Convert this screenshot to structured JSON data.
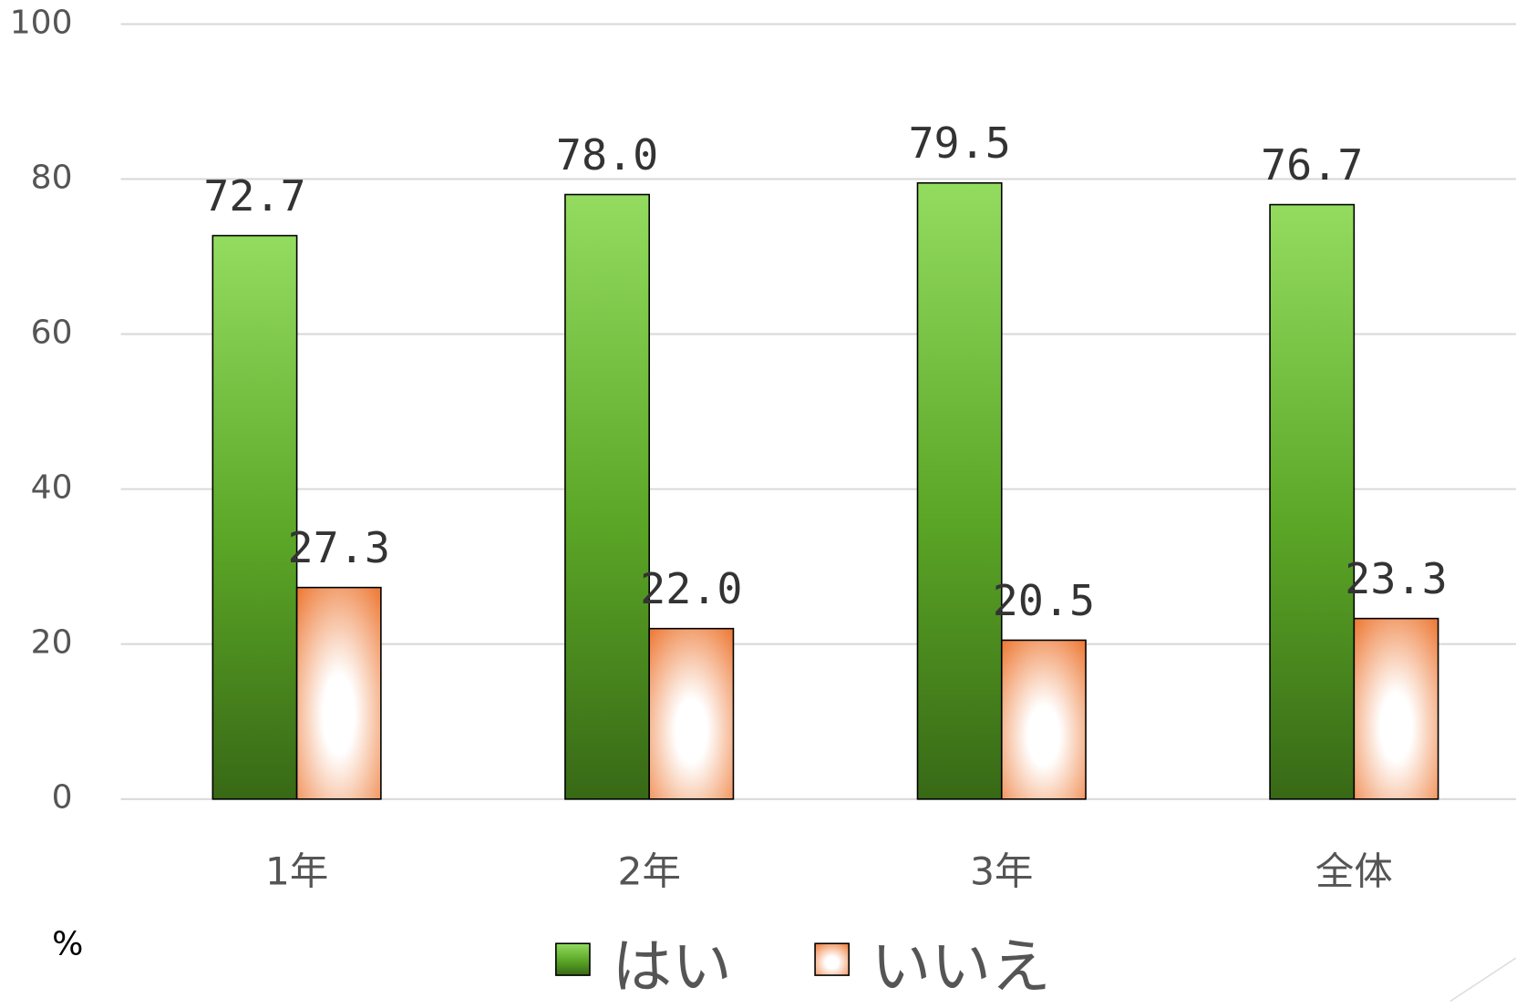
{
  "chart_data": {
    "type": "bar",
    "y_label": "%",
    "categories": [
      "1年",
      "2年",
      "3年",
      "全体"
    ],
    "series": [
      {
        "name": "はい",
        "color": "#5aa526",
        "values": [
          72.7,
          78.0,
          79.5,
          76.7
        ],
        "value_labels": [
          "72.7",
          "78.0",
          "79.5",
          "76.7"
        ]
      },
      {
        "name": "いいえ",
        "color": "#ee7d3b",
        "values": [
          27.3,
          22.0,
          20.5,
          23.3
        ],
        "value_labels": [
          "27.3",
          "22.0",
          "20.5",
          "23.3"
        ]
      }
    ],
    "ylim": [
      0,
      100
    ],
    "yticks": [
      0,
      20,
      40,
      60,
      80,
      100
    ],
    "grid": true,
    "legend": "bottom"
  }
}
